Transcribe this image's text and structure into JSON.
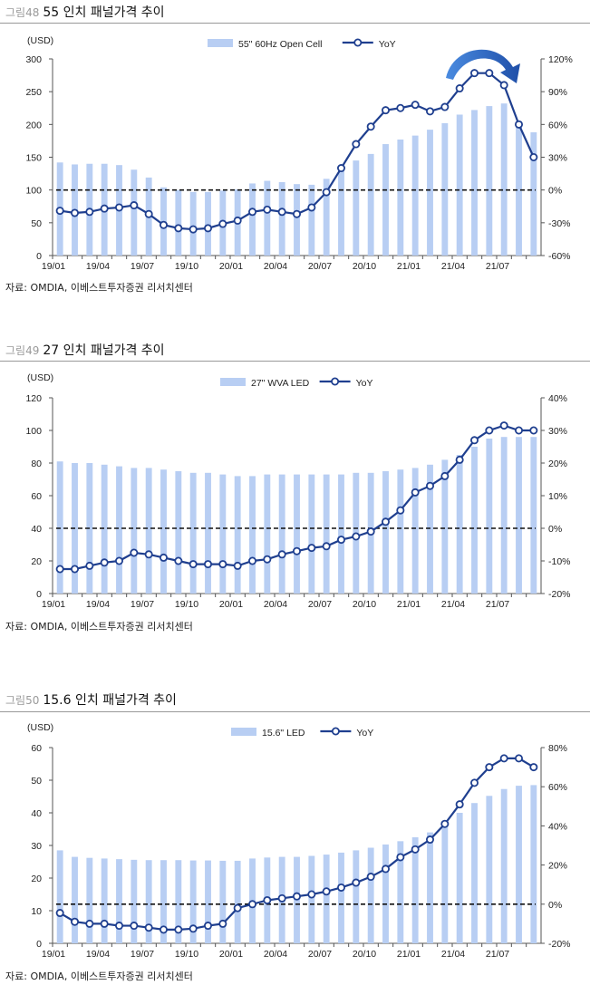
{
  "colors": {
    "bar": "#b8cef3",
    "line": "#1f3f8f",
    "marker_fill": "#ffffff",
    "zero_line": "#111111",
    "axis": "#555555"
  },
  "charts": [
    {
      "figure_number": "그림48",
      "title": "55 인치 패널가격 추이",
      "source": "자료: OMDIA, 이베스트투자증권 리서치센터",
      "arrow_icon": "curved-down-arrow",
      "chart_data": {
        "type": "bar+line",
        "left_unit": "(USD)",
        "categories": [
          "19/01",
          "19/02",
          "19/03",
          "19/04",
          "19/05",
          "19/06",
          "19/07",
          "19/08",
          "19/09",
          "19/10",
          "19/11",
          "19/12",
          "20/01",
          "20/02",
          "20/03",
          "20/04",
          "20/05",
          "20/06",
          "20/07",
          "20/08",
          "20/09",
          "20/10",
          "20/11",
          "20/12",
          "21/01",
          "21/02",
          "21/03",
          "21/04",
          "21/05",
          "21/06",
          "21/07",
          "21/08",
          "21/09"
        ],
        "x_tick_labels": [
          "19/01",
          "19/04",
          "19/07",
          "19/10",
          "20/01",
          "20/04",
          "20/07",
          "20/10",
          "21/01",
          "21/04",
          "21/07"
        ],
        "series": [
          {
            "name": "55\" 60Hz Open Cell",
            "type": "bar",
            "axis": "left",
            "values": [
              142,
              139,
              140,
              140,
              138,
              131,
              119,
              104,
              100,
              97,
              97,
              99,
              101,
              110,
              114,
              112,
              109,
              108,
              117,
              129,
              145,
              155,
              170,
              177,
              183,
              192,
              202,
              215,
              222,
              228,
              232,
              205,
              188
            ]
          },
          {
            "name": "YoY",
            "type": "line",
            "axis": "right",
            "values": [
              -19,
              -21,
              -20,
              -17,
              -16,
              -14,
              -22,
              -32,
              -35,
              -36,
              -35,
              -31,
              -28,
              -20,
              -18,
              -20,
              -22,
              -16,
              -2,
              20,
              42,
              58,
              73,
              75,
              78,
              72,
              76,
              93,
              107,
              107,
              96,
              60,
              30
            ]
          }
        ],
        "left_axis": {
          "min": 0,
          "max": 300,
          "ticks": [
            0,
            50,
            100,
            150,
            200,
            250,
            300
          ]
        },
        "right_axis": {
          "min": -60,
          "max": 120,
          "ticks": [
            "-60%",
            "-30%",
            "0%",
            "30%",
            "60%",
            "90%",
            "120%"
          ]
        }
      }
    },
    {
      "figure_number": "그림49",
      "title": "27 인치 패널가격 추이",
      "source": "자료: OMDIA, 이베스트투자증권 리서치센터",
      "chart_data": {
        "type": "bar+line",
        "left_unit": "(USD)",
        "categories": [
          "19/01",
          "19/02",
          "19/03",
          "19/04",
          "19/05",
          "19/06",
          "19/07",
          "19/08",
          "19/09",
          "19/10",
          "19/11",
          "19/12",
          "20/01",
          "20/02",
          "20/03",
          "20/04",
          "20/05",
          "20/06",
          "20/07",
          "20/08",
          "20/09",
          "20/10",
          "20/11",
          "20/12",
          "21/01",
          "21/02",
          "21/03",
          "21/04",
          "21/05",
          "21/06",
          "21/07",
          "21/08",
          "21/09"
        ],
        "x_tick_labels": [
          "19/01",
          "19/04",
          "19/07",
          "19/10",
          "20/01",
          "20/04",
          "20/07",
          "20/10",
          "21/01",
          "21/04",
          "21/07"
        ],
        "series": [
          {
            "name": "27\" WVA LED",
            "type": "bar",
            "axis": "left",
            "values": [
              81,
              80,
              80,
              79,
              78,
              77,
              77,
              76,
              75,
              74,
              74,
              73,
              72,
              72,
              73,
              73,
              73,
              73,
              73,
              73,
              74,
              74,
              75,
              76,
              77,
              79,
              82,
              85,
              90,
              95,
              96,
              96,
              96
            ]
          },
          {
            "name": "YoY",
            "type": "line",
            "axis": "right",
            "values": [
              -12.5,
              -12.5,
              -11.5,
              -10.5,
              -10,
              -7.5,
              -8,
              -9,
              -10,
              -11,
              -11,
              -11,
              -11.5,
              -10,
              -9.5,
              -8,
              -7,
              -6,
              -5.5,
              -3.5,
              -2.5,
              -1,
              2,
              5.5,
              11,
              13,
              16,
              21,
              27,
              30,
              31.5,
              30,
              30
            ]
          }
        ],
        "left_axis": {
          "min": 0,
          "max": 120,
          "ticks": [
            0,
            20,
            40,
            60,
            80,
            100,
            120
          ]
        },
        "right_axis": {
          "min": -20,
          "max": 40,
          "ticks": [
            "-20%",
            "-10%",
            "0%",
            "10%",
            "20%",
            "30%",
            "40%"
          ]
        }
      }
    },
    {
      "figure_number": "그림50",
      "title": "15.6 인치 패널가격 추이",
      "source": "자료: OMDIA, 이베스트투자증권 리서치센터",
      "chart_data": {
        "type": "bar+line",
        "left_unit": "(USD)",
        "categories": [
          "19/01",
          "19/02",
          "19/03",
          "19/04",
          "19/05",
          "19/06",
          "19/07",
          "19/08",
          "19/09",
          "19/10",
          "19/11",
          "19/12",
          "20/01",
          "20/02",
          "20/03",
          "20/04",
          "20/05",
          "20/06",
          "20/07",
          "20/08",
          "20/09",
          "20/10",
          "20/11",
          "20/12",
          "21/01",
          "21/02",
          "21/03",
          "21/04",
          "21/05",
          "21/06",
          "21/07",
          "21/08",
          "21/09"
        ],
        "x_tick_labels": [
          "19/01",
          "19/04",
          "19/07",
          "19/10",
          "20/01",
          "20/04",
          "20/07",
          "20/10",
          "21/01",
          "21/04",
          "21/07"
        ],
        "series": [
          {
            "name": "15.6\" LED",
            "type": "bar",
            "axis": "left",
            "values": [
              28.5,
              26.5,
              26.2,
              26,
              25.8,
              25.6,
              25.5,
              25.5,
              25.5,
              25.4,
              25.4,
              25.3,
              25.3,
              26,
              26.3,
              26.5,
              26.5,
              26.8,
              27.2,
              27.8,
              28.5,
              29.3,
              30.3,
              31.3,
              32.5,
              34,
              37,
              40,
              43,
              45.2,
              47.3,
              48.3,
              48.5
            ]
          },
          {
            "name": "YoY",
            "type": "line",
            "axis": "right",
            "values": [
              -4.5,
              -9,
              -10,
              -10,
              -11,
              -11,
              -12,
              -13,
              -13,
              -12.5,
              -11,
              -10,
              -2,
              0,
              2,
              3,
              4,
              5,
              6.5,
              8.5,
              11,
              14,
              18,
              24,
              28,
              33,
              41,
              51,
              62,
              70,
              74.5,
              74.5,
              70
            ]
          }
        ],
        "left_axis": {
          "min": 0,
          "max": 60,
          "ticks": [
            0,
            10,
            20,
            30,
            40,
            50,
            60
          ]
        },
        "right_axis": {
          "min": -20,
          "max": 80,
          "ticks": [
            "-20%",
            "0%",
            "20%",
            "40%",
            "60%",
            "80%"
          ]
        }
      }
    }
  ]
}
